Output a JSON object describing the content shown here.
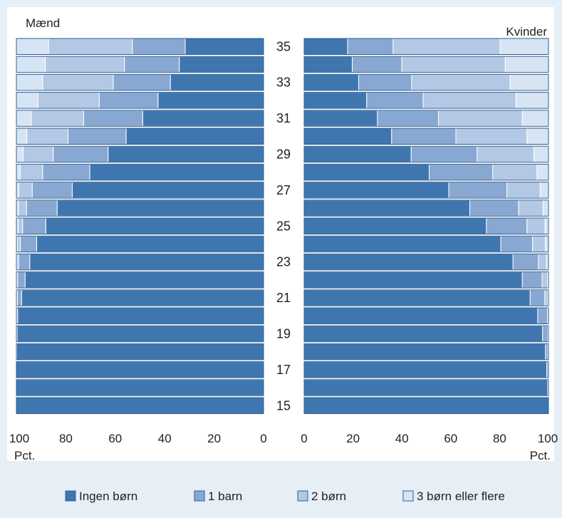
{
  "chart_data": {
    "type": "bar",
    "orientation": "horizontal",
    "stacked": true,
    "layout": "population-pyramid",
    "colors": {
      "Ingen børn": "#3f76b0",
      "1 barn": "#88a8d2",
      "2 børn": "#b3c8e5",
      "3 børn eller flere": "#d7e4f4",
      "bar_outline": "#ffffff",
      "panel_background": "#ffffff",
      "page_background": "#e6eff6"
    },
    "legend": {
      "position": "bottom",
      "entries": [
        "Ingen børn",
        "1 barn",
        "2 børn",
        "3 børn eller flere"
      ]
    },
    "age_labels": [
      "35",
      "33",
      "31",
      "29",
      "27",
      "25",
      "23",
      "21",
      "19",
      "17",
      "15"
    ],
    "ages": [
      35,
      34,
      33,
      32,
      31,
      30,
      29,
      28,
      27,
      26,
      25,
      24,
      23,
      22,
      21,
      20,
      19,
      18,
      17,
      16,
      15
    ],
    "panels": [
      {
        "title": "Mænd",
        "direction": "right-to-left",
        "xlim": [
          0,
          100
        ],
        "ticks": [
          "100",
          "80",
          "60",
          "40",
          "20",
          "0"
        ],
        "unit": "Pct.",
        "series": [
          {
            "name": "Ingen børn",
            "values": [
              31.7,
              34.1,
              37.7,
              42.7,
              48.9,
              55.6,
              62.9,
              70.3,
              77.4,
              83.5,
              88.1,
              91.8,
              94.6,
              96.5,
              97.9,
              99.5,
              99.7,
              99.9,
              100,
              100,
              100
            ]
          },
          {
            "name": "1 barn",
            "values": [
              21.4,
              22.2,
              23.1,
              23.8,
              23.9,
              23.5,
              22.2,
              19.1,
              16.2,
              12.4,
              9.4,
              6.6,
              4.5,
              3.0,
              1.7,
              0.4,
              0.3,
              0.1,
              0,
              0,
              0
            ]
          },
          {
            "name": "2 børn",
            "values": [
              33.9,
              32.0,
              28.6,
              24.8,
              21.2,
              16.7,
              12.2,
              9.1,
              5.4,
              3.3,
              1.8,
              1.2,
              0.7,
              0.4,
              0.3,
              0.1,
              0,
              0,
              0,
              0,
              0
            ]
          },
          {
            "name": "3 børn eller flere",
            "values": [
              13.0,
              11.7,
              10.6,
              8.7,
              6.0,
              4.2,
              2.7,
              1.5,
              1.0,
              0.8,
              0.7,
              0.4,
              0.2,
              0.1,
              0.1,
              0,
              0,
              0,
              0,
              0,
              0
            ]
          }
        ]
      },
      {
        "title": "Kvinder",
        "direction": "left-to-right",
        "xlim": [
          0,
          100
        ],
        "ticks": [
          "0",
          "20",
          "40",
          "60",
          "80",
          "100"
        ],
        "unit": "Pct.",
        "series": [
          {
            "name": "Ingen børn",
            "values": [
              17.8,
              19.7,
              22.3,
              25.6,
              30.0,
              35.8,
              43.8,
              51.2,
              59.2,
              67.8,
              74.6,
              80.5,
              85.5,
              89.3,
              92.5,
              95.6,
              97.6,
              98.8,
              99.3,
              99.7,
              100
            ]
          },
          {
            "name": "1 barn",
            "values": [
              18.6,
              20.3,
              21.7,
              23.1,
              25.0,
              26.3,
              27.0,
              26.0,
              23.8,
              20.0,
              16.6,
              13.0,
              10.4,
              8.1,
              6.0,
              4.0,
              2.2,
              1.0,
              0.6,
              0.3,
              0
            ]
          },
          {
            "name": "2 børn",
            "values": [
              43.8,
              42.3,
              40.3,
              38.0,
              34.3,
              29.1,
              23.2,
              18.1,
              13.6,
              10.0,
              7.4,
              5.2,
              3.3,
              2.2,
              1.2,
              0.4,
              0.2,
              0.2,
              0.1,
              0,
              0
            ]
          },
          {
            "name": "3 børn eller flere",
            "values": [
              19.8,
              17.7,
              15.7,
              13.3,
              10.7,
              8.8,
              6.0,
              4.7,
              3.4,
              2.2,
              1.4,
              1.3,
              0.8,
              0.4,
              0.3,
              0,
              0,
              0,
              0,
              0,
              0
            ]
          }
        ]
      }
    ]
  }
}
